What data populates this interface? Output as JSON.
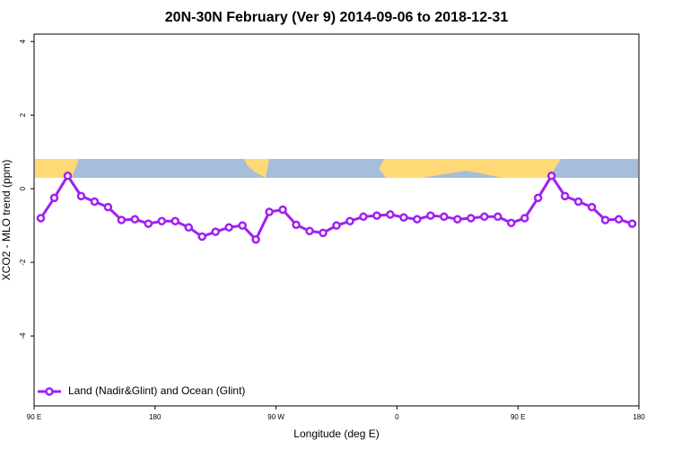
{
  "chart_data": {
    "type": "line",
    "title": "20N-30N February (Ver 9)   2014-09-06 to 2018-12-31",
    "xlabel": "Longitude (deg E)",
    "ylabel": "XCO2 - MLO trend (ppm)",
    "x": [
      95,
      105,
      115,
      125,
      135,
      145,
      155,
      165,
      175,
      185,
      195,
      205,
      215,
      225,
      235,
      245,
      255,
      265,
      275,
      285,
      295,
      305,
      315,
      325,
      335,
      345,
      355,
      365,
      375,
      385,
      395,
      405,
      415,
      425,
      435,
      445,
      455,
      465,
      475,
      485,
      495,
      505,
      515,
      525,
      535
    ],
    "series": [
      {
        "name": "Land (Nadir&Glint) and Ocean (Glint)",
        "color": "#a020f0",
        "values": [
          -0.8,
          -0.25,
          0.35,
          -0.2,
          -0.35,
          -0.5,
          -0.85,
          -0.83,
          -0.95,
          -0.88,
          -0.88,
          -1.05,
          -1.3,
          -1.17,
          -1.05,
          -1.0,
          -1.38,
          -0.63,
          -0.57,
          -0.98,
          -1.15,
          -1.2,
          -1.0,
          -0.88,
          -0.76,
          -0.73,
          -0.7,
          -0.78,
          -0.83,
          -0.73,
          -0.76,
          -0.83,
          -0.8,
          -0.76,
          -0.76,
          -0.93,
          -0.8,
          -0.25,
          0.35,
          -0.2,
          -0.35,
          -0.5,
          -0.85,
          -0.83,
          -0.95
        ]
      }
    ],
    "xlim": [
      90,
      540
    ],
    "xticks": [
      {
        "value": 90,
        "label": "90 E"
      },
      180,
      {
        "value": 270,
        "label": "90 W"
      },
      {
        "value": 360,
        "label": "0"
      },
      {
        "value": 450,
        "label": "90 E"
      },
      {
        "value": 540,
        "label": "180"
      }
    ],
    "ylim": [
      -5.9,
      4.2
    ],
    "yticks": [
      -4,
      -2,
      0,
      2,
      4
    ],
    "legend": "lower left"
  }
}
